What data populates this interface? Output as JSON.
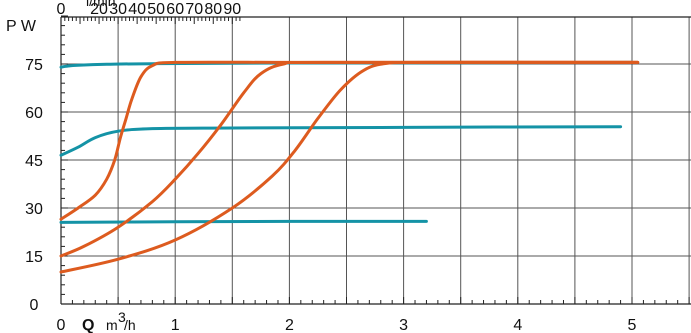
{
  "chart_data": {
    "type": "line",
    "title": "",
    "y_axis": {
      "label": "P W",
      "ticks": [
        "0",
        "15",
        "30",
        "45",
        "60",
        "75"
      ],
      "ylim": [
        0,
        90
      ]
    },
    "x_axis_bottom": {
      "label_bold": "Q",
      "label_unit_prefix": "m",
      "label_unit_sup": "3",
      "label_unit_suffix": "/h",
      "ticks": [
        "0",
        "1",
        "2",
        "3",
        "4",
        "5"
      ],
      "xlim": [
        0,
        5.5
      ]
    },
    "x_axis_top": {
      "label": "l/min",
      "ticks": [
        "0",
        "20",
        "30",
        "40",
        "50",
        "60",
        "70",
        "80",
        "90"
      ]
    },
    "grid": true,
    "colors": {
      "teal": "#1493a6",
      "orange": "#dd5b1f",
      "grid": "#555555"
    },
    "series": [
      {
        "color": "teal",
        "points": [
          [
            0,
            74
          ],
          [
            0.05,
            74.3
          ],
          [
            0.15,
            74.6
          ],
          [
            0.4,
            74.9
          ],
          [
            0.8,
            75.1
          ],
          [
            2,
            75.3
          ],
          [
            5.0,
            75.5
          ]
        ]
      },
      {
        "color": "teal",
        "points": [
          [
            0,
            46.5
          ],
          [
            0.15,
            49
          ],
          [
            0.3,
            52
          ],
          [
            0.5,
            54
          ],
          [
            0.8,
            54.8
          ],
          [
            1.5,
            55
          ],
          [
            3,
            55.2
          ],
          [
            4.9,
            55.4
          ]
        ]
      },
      {
        "color": "teal",
        "points": [
          [
            0,
            25.5
          ],
          [
            1,
            25.7
          ],
          [
            2,
            25.8
          ],
          [
            3.2,
            25.8
          ]
        ]
      },
      {
        "color": "orange",
        "points": [
          [
            0,
            26.5
          ],
          [
            0.15,
            30
          ],
          [
            0.3,
            34
          ],
          [
            0.4,
            39
          ],
          [
            0.47,
            45
          ],
          [
            0.52,
            52
          ],
          [
            0.57,
            58
          ],
          [
            0.62,
            64
          ],
          [
            0.7,
            71
          ],
          [
            0.8,
            74.5
          ],
          [
            1.0,
            75.5
          ],
          [
            2,
            75.5
          ],
          [
            3,
            75.5
          ],
          [
            5.05,
            75.5
          ]
        ]
      },
      {
        "color": "orange",
        "points": [
          [
            0,
            15
          ],
          [
            0.2,
            18
          ],
          [
            0.5,
            24
          ],
          [
            0.8,
            32
          ],
          [
            1.0,
            39
          ],
          [
            1.2,
            47
          ],
          [
            1.4,
            56
          ],
          [
            1.6,
            66
          ],
          [
            1.75,
            72
          ],
          [
            1.95,
            75
          ],
          [
            2.3,
            75.5
          ],
          [
            5.05,
            75.5
          ]
        ]
      },
      {
        "color": "orange",
        "points": [
          [
            0,
            10
          ],
          [
            0.5,
            14
          ],
          [
            1.0,
            20
          ],
          [
            1.5,
            30
          ],
          [
            1.85,
            40
          ],
          [
            2.05,
            48
          ],
          [
            2.25,
            58
          ],
          [
            2.45,
            67
          ],
          [
            2.65,
            73
          ],
          [
            2.85,
            75.2
          ],
          [
            3.2,
            75.5
          ],
          [
            5.05,
            75.5
          ]
        ]
      }
    ]
  }
}
